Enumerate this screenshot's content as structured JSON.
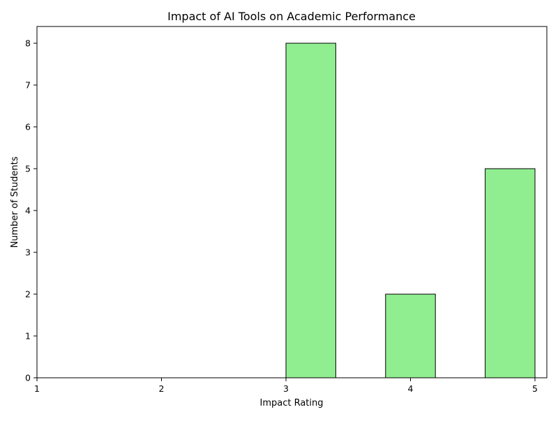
{
  "chart_data": {
    "type": "bar",
    "title": "Impact of AI Tools on Academic Performance",
    "xlabel": "Impact Rating",
    "ylabel": "Number of Students",
    "xlim": [
      1,
      5
    ],
    "ylim": [
      0,
      8.4
    ],
    "x_ticks": [
      "1",
      "2",
      "3",
      "4",
      "5"
    ],
    "y_ticks": [
      "0",
      "1",
      "2",
      "3",
      "4",
      "5",
      "6",
      "7",
      "8"
    ],
    "bins": [
      {
        "start": 1.0,
        "end": 1.4,
        "value": 0
      },
      {
        "start": 1.4,
        "end": 1.8,
        "value": 0
      },
      {
        "start": 1.8,
        "end": 2.2,
        "value": 0
      },
      {
        "start": 2.2,
        "end": 2.6,
        "value": 0
      },
      {
        "start": 2.6,
        "end": 3.0,
        "value": 0
      },
      {
        "start": 3.0,
        "end": 3.4,
        "value": 8
      },
      {
        "start": 3.4,
        "end": 3.8,
        "value": 0
      },
      {
        "start": 3.8,
        "end": 4.2,
        "value": 2
      },
      {
        "start": 4.2,
        "end": 4.6,
        "value": 0
      },
      {
        "start": 4.6,
        "end": 5.0,
        "value": 5
      }
    ],
    "bar_color": "#90ee90",
    "edge_color": "#000000",
    "grid": false,
    "legend": "none"
  }
}
